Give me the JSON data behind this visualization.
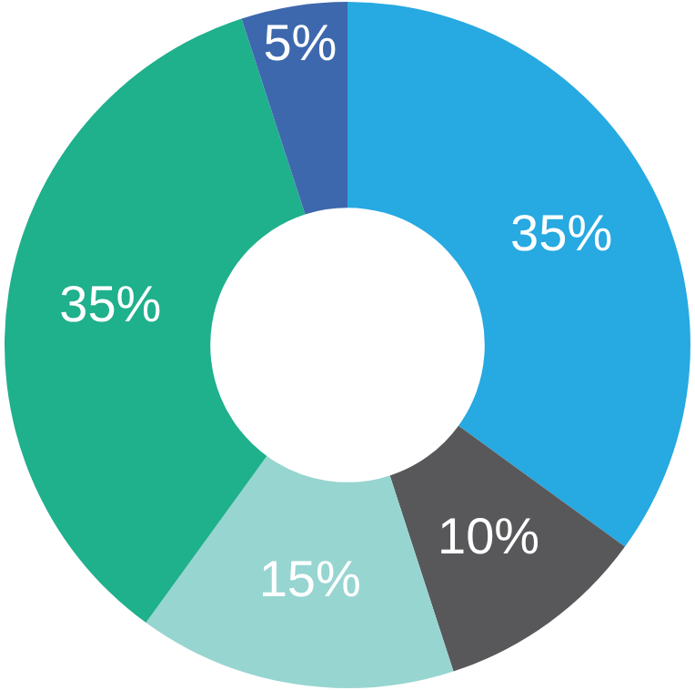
{
  "chart_data": {
    "type": "donut",
    "categories": [
      null,
      null,
      null,
      null,
      null
    ],
    "values": [
      35,
      10,
      15,
      35,
      5
    ],
    "colors": [
      "#27a9e1",
      "#58585a",
      "#97d5d1",
      "#1fb08c",
      "#3e68ad"
    ],
    "value_labels": [
      "35%",
      "10%",
      "15%",
      "35%",
      "5%"
    ],
    "legend": false
  }
}
